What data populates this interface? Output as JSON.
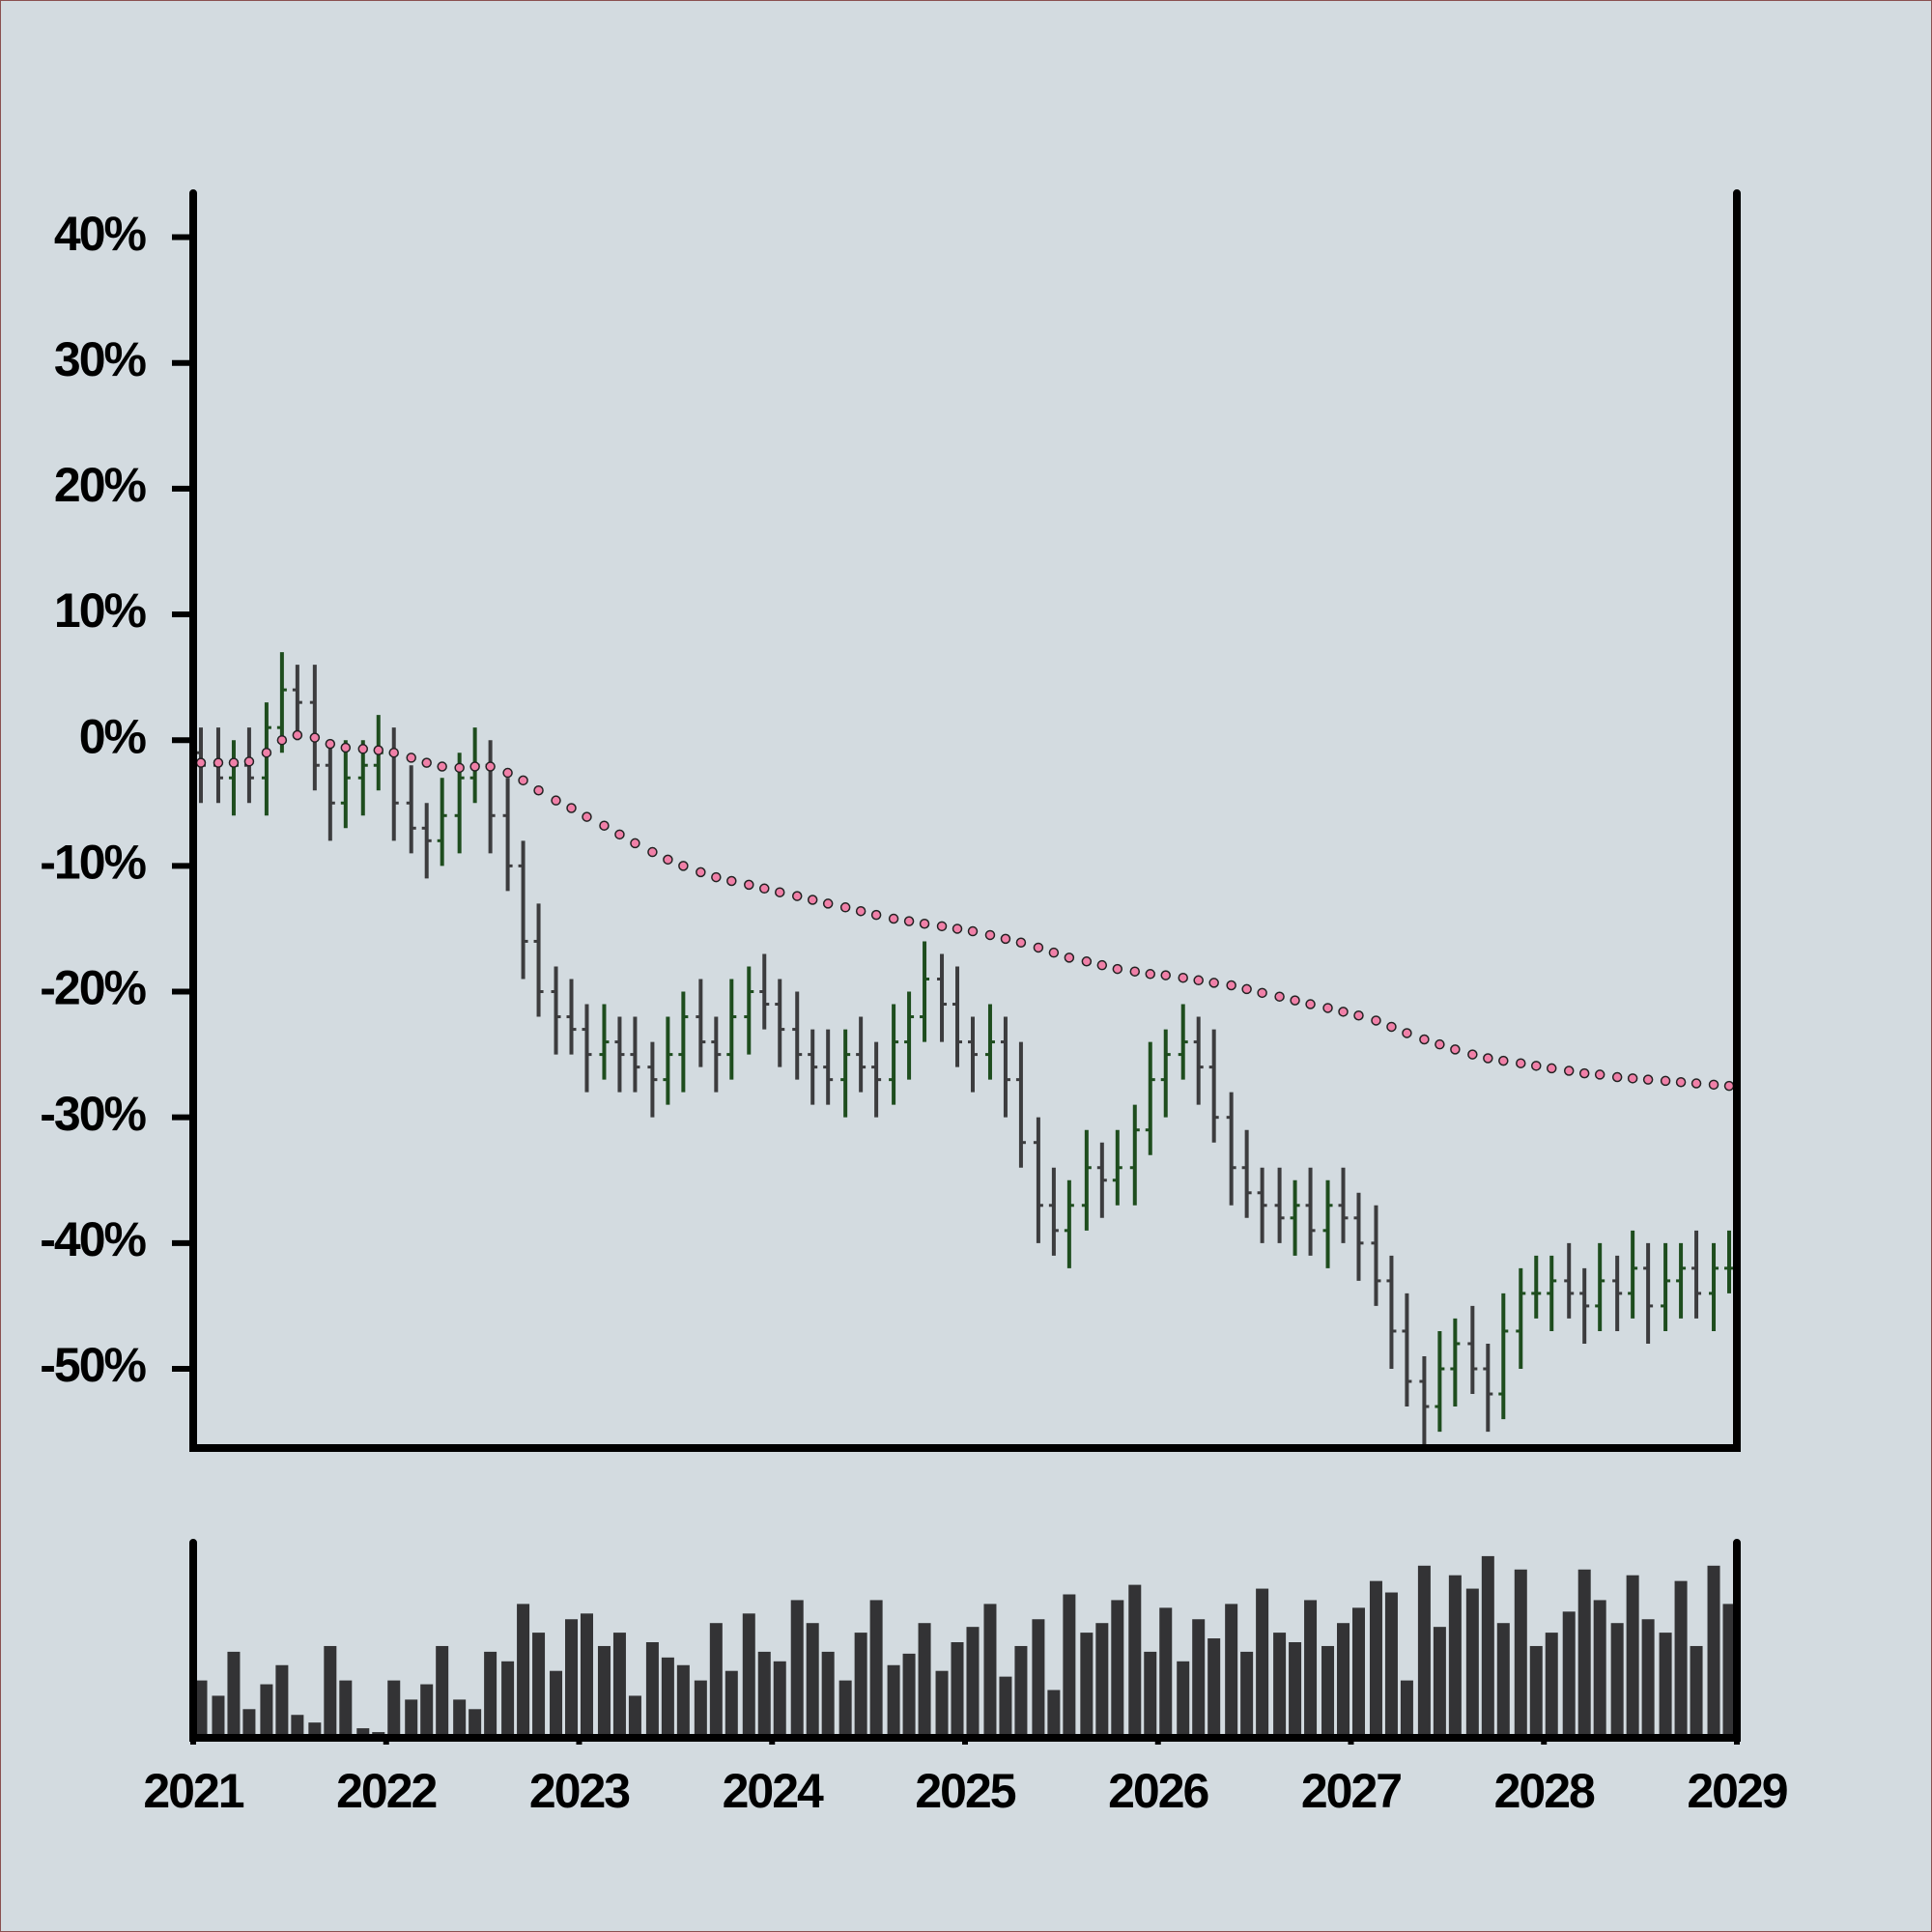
{
  "chart_data": {
    "type": "ohlc",
    "x": [
      2021.04,
      2021.13,
      2021.21,
      2021.29,
      2021.38,
      2021.46,
      2021.54,
      2021.63,
      2021.71,
      2021.79,
      2021.88,
      2021.96,
      2022.04,
      2022.13,
      2022.21,
      2022.29,
      2022.38,
      2022.46,
      2022.54,
      2022.63,
      2022.71,
      2022.79,
      2022.88,
      2022.96,
      2023.04,
      2023.13,
      2023.21,
      2023.29,
      2023.38,
      2023.46,
      2023.54,
      2023.63,
      2023.71,
      2023.79,
      2023.88,
      2023.96,
      2024.04,
      2024.13,
      2024.21,
      2024.29,
      2024.38,
      2024.46,
      2024.54,
      2024.63,
      2024.71,
      2024.79,
      2024.88,
      2024.96,
      2025.04,
      2025.13,
      2025.21,
      2025.29,
      2025.38,
      2025.46,
      2025.54,
      2025.63,
      2025.71,
      2025.79,
      2025.88,
      2025.96,
      2026.04,
      2026.13,
      2026.21,
      2026.29,
      2026.38,
      2026.46,
      2026.54,
      2026.63,
      2026.71,
      2026.79,
      2026.88,
      2026.96,
      2027.04,
      2027.13,
      2027.21,
      2027.29,
      2027.38,
      2027.46,
      2027.54,
      2027.63,
      2027.71,
      2027.79,
      2027.88,
      2027.96,
      2028.04,
      2028.13,
      2028.21,
      2028.29,
      2028.38,
      2028.46,
      2028.54,
      2028.63,
      2028.71,
      2028.79,
      2028.88,
      2028.96
    ],
    "open": [
      -1,
      -2,
      -3,
      -2,
      -3,
      1,
      4,
      3,
      -2,
      -5,
      -3,
      -2,
      -1,
      -5,
      -7,
      -8,
      -6,
      -3,
      -2,
      -6,
      -10,
      -16,
      -20,
      -22,
      -23,
      -25,
      -24,
      -25,
      -26,
      -27,
      -25,
      -22,
      -24,
      -25,
      -22,
      -20,
      -21,
      -23,
      -25,
      -26,
      -27,
      -25,
      -26,
      -27,
      -24,
      -22,
      -19,
      -21,
      -24,
      -25,
      -24,
      -27,
      -32,
      -37,
      -39,
      -37,
      -34,
      -35,
      -34,
      -31,
      -27,
      -25,
      -24,
      -26,
      -30,
      -34,
      -36,
      -37,
      -38,
      -37,
      -39,
      -37,
      -38,
      -40,
      -43,
      -47,
      -51,
      -53,
      -50,
      -48,
      -50,
      -52,
      -47,
      -44,
      -44,
      -43,
      -44,
      -45,
      -43,
      -44,
      -42,
      -45,
      -43,
      -42,
      -44,
      -42
    ],
    "high": [
      1,
      1,
      0,
      1,
      3,
      7,
      6,
      6,
      0,
      0,
      0,
      2,
      1,
      -2,
      -5,
      -3,
      -1,
      1,
      0,
      -3,
      -8,
      -13,
      -18,
      -19,
      -21,
      -21,
      -22,
      -22,
      -24,
      -22,
      -20,
      -19,
      -22,
      -19,
      -18,
      -17,
      -19,
      -20,
      -23,
      -23,
      -23,
      -22,
      -24,
      -21,
      -20,
      -16,
      -17,
      -18,
      -22,
      -21,
      -22,
      -24,
      -30,
      -34,
      -35,
      -31,
      -32,
      -31,
      -29,
      -24,
      -23,
      -21,
      -22,
      -23,
      -28,
      -31,
      -34,
      -34,
      -35,
      -34,
      -35,
      -34,
      -36,
      -37,
      -41,
      -44,
      -49,
      -47,
      -46,
      -45,
      -48,
      -44,
      -42,
      -41,
      -41,
      -40,
      -42,
      -40,
      -41,
      -39,
      -40,
      -40,
      -40,
      -39,
      -40,
      -39
    ],
    "low": [
      -5,
      -5,
      -6,
      -5,
      -6,
      -1,
      0,
      -4,
      -8,
      -7,
      -6,
      -4,
      -8,
      -9,
      -11,
      -10,
      -9,
      -5,
      -9,
      -12,
      -19,
      -22,
      -25,
      -25,
      -28,
      -27,
      -28,
      -28,
      -30,
      -29,
      -28,
      -26,
      -28,
      -27,
      -25,
      -23,
      -26,
      -27,
      -29,
      -29,
      -30,
      -28,
      -30,
      -29,
      -27,
      -24,
      -24,
      -26,
      -28,
      -27,
      -30,
      -34,
      -40,
      -41,
      -42,
      -39,
      -38,
      -37,
      -37,
      -33,
      -30,
      -27,
      -29,
      -32,
      -37,
      -38,
      -40,
      -40,
      -41,
      -41,
      -42,
      -40,
      -43,
      -45,
      -50,
      -53,
      -56,
      -55,
      -53,
      -52,
      -55,
      -54,
      -50,
      -46,
      -47,
      -46,
      -48,
      -47,
      -47,
      -46,
      -48,
      -47,
      -46,
      -46,
      -47,
      -44
    ],
    "close": [
      -2,
      -3,
      -2,
      -3,
      1,
      4,
      3,
      -2,
      -5,
      -3,
      -2,
      -1,
      -5,
      -7,
      -8,
      -6,
      -3,
      -2,
      -6,
      -10,
      -16,
      -20,
      -22,
      -23,
      -25,
      -24,
      -25,
      -26,
      -27,
      -25,
      -22,
      -24,
      -25,
      -22,
      -20,
      -21,
      -23,
      -25,
      -26,
      -27,
      -25,
      -26,
      -27,
      -24,
      -22,
      -19,
      -21,
      -24,
      -25,
      -24,
      -27,
      -32,
      -37,
      -39,
      -37,
      -34,
      -35,
      -34,
      -31,
      -27,
      -25,
      -24,
      -26,
      -30,
      -34,
      -36,
      -37,
      -38,
      -37,
      -39,
      -37,
      -38,
      -40,
      -43,
      -47,
      -51,
      -53,
      -50,
      -48,
      -50,
      -52,
      -47,
      -44,
      -44,
      -43,
      -44,
      -45,
      -43,
      -44,
      -42,
      -45,
      -43,
      -42,
      -44,
      -42,
      -42
    ],
    "up_color": "#1e4d1e",
    "down_color": "#3c3c3e",
    "moving_average": {
      "color": "#f080a8",
      "values": [
        -1.8,
        -1.8,
        -1.8,
        -1.7,
        -1.0,
        0,
        0.4,
        0.2,
        -0.3,
        -0.6,
        -0.7,
        -0.8,
        -1.0,
        -1.4,
        -1.8,
        -2.1,
        -2.2,
        -2.1,
        -2.1,
        -2.6,
        -3.2,
        -4.0,
        -4.8,
        -5.4,
        -6.1,
        -6.8,
        -7.5,
        -8.2,
        -8.9,
        -9.5,
        -10.0,
        -10.5,
        -10.9,
        -11.2,
        -11.5,
        -11.8,
        -12.1,
        -12.4,
        -12.7,
        -13.0,
        -13.3,
        -13.6,
        -13.9,
        -14.2,
        -14.4,
        -14.6,
        -14.8,
        -15.0,
        -15.2,
        -15.5,
        -15.8,
        -16.1,
        -16.5,
        -16.9,
        -17.3,
        -17.6,
        -17.9,
        -18.2,
        -18.4,
        -18.6,
        -18.7,
        -18.9,
        -19.1,
        -19.3,
        -19.5,
        -19.8,
        -20.1,
        -20.4,
        -20.7,
        -21.0,
        -21.3,
        -21.6,
        -21.9,
        -22.3,
        -22.8,
        -23.3,
        -23.8,
        -24.2,
        -24.6,
        -25.0,
        -25.3,
        -25.5,
        -25.7,
        -25.9,
        -26.1,
        -26.3,
        -26.5,
        -26.6,
        -26.8,
        -26.9,
        -27.0,
        -27.1,
        -27.2,
        -27.3,
        -27.4,
        -27.5
      ]
    },
    "volume": {
      "color": "#333335",
      "ylim": [
        0,
        100
      ],
      "values": [
        30,
        22,
        45,
        15,
        28,
        38,
        12,
        8,
        48,
        30,
        5,
        3,
        30,
        20,
        28,
        48,
        20,
        15,
        45,
        40,
        70,
        55,
        35,
        62,
        65,
        48,
        55,
        22,
        50,
        42,
        38,
        30,
        60,
        35,
        65,
        45,
        40,
        72,
        60,
        45,
        30,
        55,
        72,
        38,
        44,
        60,
        35,
        50,
        58,
        70,
        32,
        48,
        62,
        25,
        75,
        55,
        60,
        72,
        80,
        45,
        68,
        40,
        62,
        52,
        70,
        45,
        78,
        55,
        50,
        72,
        48,
        60,
        68,
        82,
        76,
        30,
        90,
        58,
        85,
        78,
        95,
        60,
        88,
        48,
        55,
        66,
        88,
        72,
        60,
        85,
        62,
        55,
        82,
        48,
        90,
        70
      ]
    },
    "xlim": [
      2021,
      2029
    ],
    "xticks": [
      2021,
      2022,
      2023,
      2024,
      2025,
      2026,
      2027,
      2028,
      2029
    ],
    "ylim": [
      -56.3,
      43.5
    ],
    "yticks": [
      {
        "value": -50,
        "label": "-50%"
      },
      {
        "value": -40,
        "label": "-40%"
      },
      {
        "value": -30,
        "label": "-30%"
      },
      {
        "value": -20,
        "label": "-20%"
      },
      {
        "value": -10,
        "label": "-10%"
      },
      {
        "value": 0,
        "label": "0%"
      },
      {
        "value": 10,
        "label": "10%"
      },
      {
        "value": 20,
        "label": "20%"
      },
      {
        "value": 30,
        "label": "30%"
      },
      {
        "value": 40,
        "label": "40%"
      }
    ],
    "grid": false
  }
}
